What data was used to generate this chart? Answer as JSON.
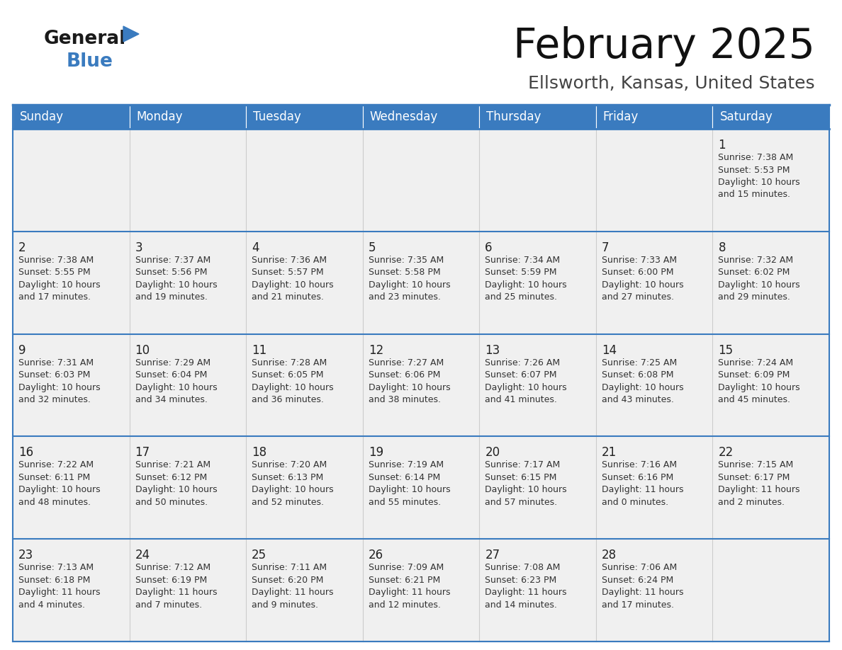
{
  "title": "February 2025",
  "subtitle": "Ellsworth, Kansas, United States",
  "header_bg": "#3A7BBF",
  "header_text": "#FFFFFF",
  "cell_bg_even": "#F0F0F0",
  "cell_bg_odd": "#FFFFFF",
  "cell_text": "#333333",
  "border_color": "#3A7BBF",
  "days_of_week": [
    "Sunday",
    "Monday",
    "Tuesday",
    "Wednesday",
    "Thursday",
    "Friday",
    "Saturday"
  ],
  "calendar_data": [
    [
      null,
      null,
      null,
      null,
      null,
      null,
      {
        "day": 1,
        "sunrise": "7:38 AM",
        "sunset": "5:53 PM",
        "daylight": "10 hours\nand 15 minutes."
      }
    ],
    [
      {
        "day": 2,
        "sunrise": "7:38 AM",
        "sunset": "5:55 PM",
        "daylight": "10 hours\nand 17 minutes."
      },
      {
        "day": 3,
        "sunrise": "7:37 AM",
        "sunset": "5:56 PM",
        "daylight": "10 hours\nand 19 minutes."
      },
      {
        "day": 4,
        "sunrise": "7:36 AM",
        "sunset": "5:57 PM",
        "daylight": "10 hours\nand 21 minutes."
      },
      {
        "day": 5,
        "sunrise": "7:35 AM",
        "sunset": "5:58 PM",
        "daylight": "10 hours\nand 23 minutes."
      },
      {
        "day": 6,
        "sunrise": "7:34 AM",
        "sunset": "5:59 PM",
        "daylight": "10 hours\nand 25 minutes."
      },
      {
        "day": 7,
        "sunrise": "7:33 AM",
        "sunset": "6:00 PM",
        "daylight": "10 hours\nand 27 minutes."
      },
      {
        "day": 8,
        "sunrise": "7:32 AM",
        "sunset": "6:02 PM",
        "daylight": "10 hours\nand 29 minutes."
      }
    ],
    [
      {
        "day": 9,
        "sunrise": "7:31 AM",
        "sunset": "6:03 PM",
        "daylight": "10 hours\nand 32 minutes."
      },
      {
        "day": 10,
        "sunrise": "7:29 AM",
        "sunset": "6:04 PM",
        "daylight": "10 hours\nand 34 minutes."
      },
      {
        "day": 11,
        "sunrise": "7:28 AM",
        "sunset": "6:05 PM",
        "daylight": "10 hours\nand 36 minutes."
      },
      {
        "day": 12,
        "sunrise": "7:27 AM",
        "sunset": "6:06 PM",
        "daylight": "10 hours\nand 38 minutes."
      },
      {
        "day": 13,
        "sunrise": "7:26 AM",
        "sunset": "6:07 PM",
        "daylight": "10 hours\nand 41 minutes."
      },
      {
        "day": 14,
        "sunrise": "7:25 AM",
        "sunset": "6:08 PM",
        "daylight": "10 hours\nand 43 minutes."
      },
      {
        "day": 15,
        "sunrise": "7:24 AM",
        "sunset": "6:09 PM",
        "daylight": "10 hours\nand 45 minutes."
      }
    ],
    [
      {
        "day": 16,
        "sunrise": "7:22 AM",
        "sunset": "6:11 PM",
        "daylight": "10 hours\nand 48 minutes."
      },
      {
        "day": 17,
        "sunrise": "7:21 AM",
        "sunset": "6:12 PM",
        "daylight": "10 hours\nand 50 minutes."
      },
      {
        "day": 18,
        "sunrise": "7:20 AM",
        "sunset": "6:13 PM",
        "daylight": "10 hours\nand 52 minutes."
      },
      {
        "day": 19,
        "sunrise": "7:19 AM",
        "sunset": "6:14 PM",
        "daylight": "10 hours\nand 55 minutes."
      },
      {
        "day": 20,
        "sunrise": "7:17 AM",
        "sunset": "6:15 PM",
        "daylight": "10 hours\nand 57 minutes."
      },
      {
        "day": 21,
        "sunrise": "7:16 AM",
        "sunset": "6:16 PM",
        "daylight": "11 hours\nand 0 minutes."
      },
      {
        "day": 22,
        "sunrise": "7:15 AM",
        "sunset": "6:17 PM",
        "daylight": "11 hours\nand 2 minutes."
      }
    ],
    [
      {
        "day": 23,
        "sunrise": "7:13 AM",
        "sunset": "6:18 PM",
        "daylight": "11 hours\nand 4 minutes."
      },
      {
        "day": 24,
        "sunrise": "7:12 AM",
        "sunset": "6:19 PM",
        "daylight": "11 hours\nand 7 minutes."
      },
      {
        "day": 25,
        "sunrise": "7:11 AM",
        "sunset": "6:20 PM",
        "daylight": "11 hours\nand 9 minutes."
      },
      {
        "day": 26,
        "sunrise": "7:09 AM",
        "sunset": "6:21 PM",
        "daylight": "11 hours\nand 12 minutes."
      },
      {
        "day": 27,
        "sunrise": "7:08 AM",
        "sunset": "6:23 PM",
        "daylight": "11 hours\nand 14 minutes."
      },
      {
        "day": 28,
        "sunrise": "7:06 AM",
        "sunset": "6:24 PM",
        "daylight": "11 hours\nand 17 minutes."
      },
      null
    ]
  ],
  "logo_color_general": "#1a1a1a",
  "logo_color_blue": "#3A7BBF"
}
